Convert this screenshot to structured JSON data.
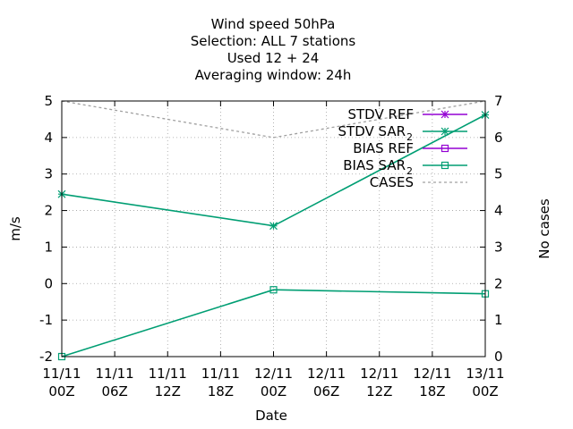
{
  "chart_data": {
    "type": "line",
    "title_lines": [
      "Wind speed 50hPa",
      "Selection: ALL       7 stations",
      "Used  12 + 24",
      "Averaging window: 24h"
    ],
    "xlabel": "Date",
    "ylabel": "m/s",
    "y2label": "No cases",
    "x_ticks": [
      [
        "11/11",
        "00Z"
      ],
      [
        "11/11",
        "06Z"
      ],
      [
        "11/11",
        "12Z"
      ],
      [
        "11/11",
        "18Z"
      ],
      [
        "12/11",
        "00Z"
      ],
      [
        "12/11",
        "06Z"
      ],
      [
        "12/11",
        "12Z"
      ],
      [
        "12/11",
        "18Z"
      ],
      [
        "13/11",
        "00Z"
      ]
    ],
    "x_tick_hours": [
      0,
      6,
      12,
      18,
      24,
      30,
      36,
      42,
      48
    ],
    "xlim_hours": [
      0,
      48
    ],
    "ylim": [
      -2,
      5
    ],
    "y_ticks": [
      -2,
      -1,
      0,
      1,
      2,
      3,
      4,
      5
    ],
    "y2lim": [
      0,
      7
    ],
    "y2_ticks": [
      0,
      1,
      2,
      3,
      4,
      5,
      6,
      7
    ],
    "grid": true,
    "legend_position": "top-right",
    "series": [
      {
        "name": "STDV REF",
        "sub": "",
        "axis": "y",
        "color": "#9400d3",
        "marker": "star",
        "dash": false,
        "x_hours": [],
        "values": []
      },
      {
        "name": "STDV SAR",
        "sub": "2",
        "axis": "y",
        "color": "#009e73",
        "marker": "star",
        "dash": false,
        "x_hours": [
          0,
          24,
          48
        ],
        "values": [
          2.45,
          1.58,
          4.62
        ]
      },
      {
        "name": "BIAS REF",
        "sub": "",
        "axis": "y",
        "color": "#9400d3",
        "marker": "square",
        "dash": false,
        "x_hours": [],
        "values": []
      },
      {
        "name": "BIAS SAR",
        "sub": "2",
        "axis": "y",
        "color": "#009e73",
        "marker": "square",
        "dash": false,
        "x_hours": [
          0,
          24,
          48
        ],
        "values": [
          -2.0,
          -0.17,
          -0.28
        ]
      },
      {
        "name": "CASES",
        "sub": "",
        "axis": "y2",
        "color": "#a0a0a0",
        "marker": "none",
        "dash": true,
        "x_hours": [
          0,
          24,
          48
        ],
        "values": [
          7,
          6,
          7
        ]
      }
    ]
  }
}
